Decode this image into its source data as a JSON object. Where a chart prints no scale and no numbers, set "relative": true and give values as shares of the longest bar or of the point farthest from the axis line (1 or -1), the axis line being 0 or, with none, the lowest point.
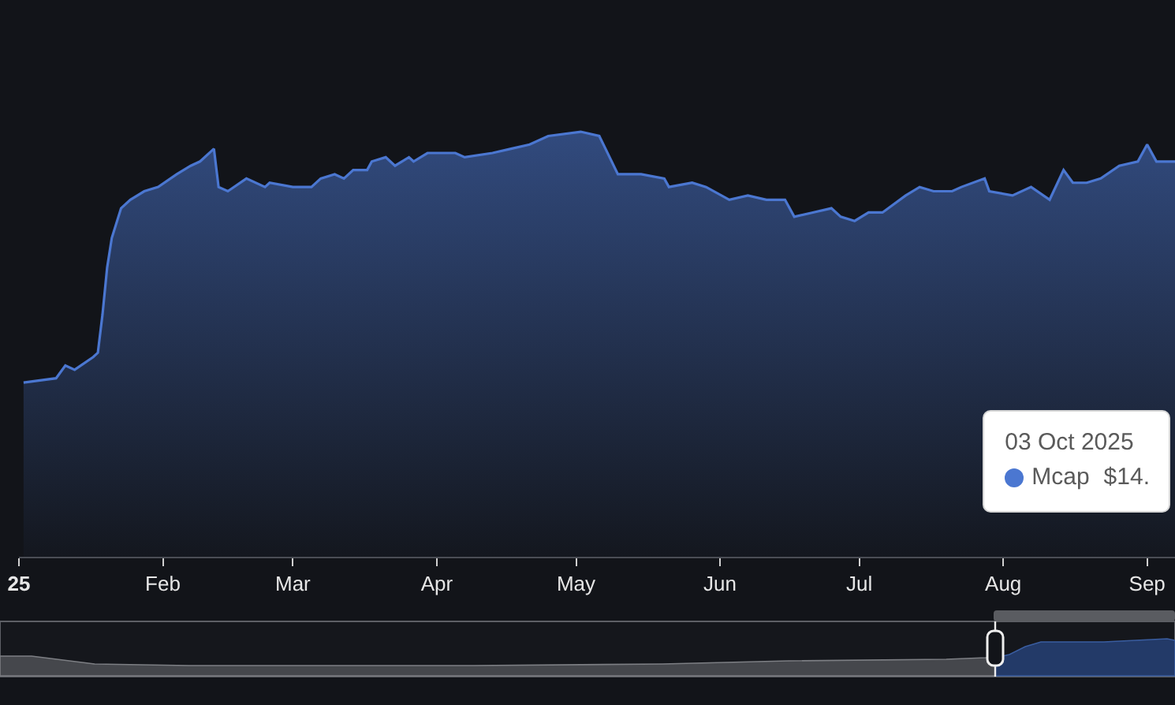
{
  "chart_data": {
    "type": "area",
    "relative": true,
    "x": [
      "2025-01-02",
      "2025-01-09",
      "2025-01-11",
      "2025-01-13",
      "2025-01-17",
      "2025-01-18",
      "2025-01-19",
      "2025-01-20",
      "2025-01-21",
      "2025-01-23",
      "2025-01-25",
      "2025-01-28",
      "2025-01-31",
      "2025-02-04",
      "2025-02-07",
      "2025-02-09",
      "2025-02-12",
      "2025-02-13",
      "2025-02-15",
      "2025-02-19",
      "2025-02-23",
      "2025-02-24",
      "2025-03-01",
      "2025-03-05",
      "2025-03-07",
      "2025-03-10",
      "2025-03-12",
      "2025-03-14",
      "2025-03-17",
      "2025-03-18",
      "2025-03-21",
      "2025-03-23",
      "2025-03-26",
      "2025-03-27",
      "2025-03-30",
      "2025-04-05",
      "2025-04-07",
      "2025-04-13",
      "2025-04-17",
      "2025-04-21",
      "2025-04-25",
      "2025-05-02",
      "2025-05-06",
      "2025-05-10",
      "2025-05-15",
      "2025-05-20",
      "2025-05-21",
      "2025-05-26",
      "2025-05-29",
      "2025-06-03",
      "2025-06-07",
      "2025-06-11",
      "2025-06-15",
      "2025-06-17",
      "2025-06-21",
      "2025-06-25",
      "2025-06-27",
      "2025-06-30",
      "2025-07-03",
      "2025-07-06",
      "2025-07-11",
      "2025-07-14",
      "2025-07-17",
      "2025-07-21",
      "2025-07-23",
      "2025-07-28",
      "2025-07-29",
      "2025-08-03",
      "2025-08-07",
      "2025-08-11",
      "2025-08-14",
      "2025-08-16",
      "2025-08-19",
      "2025-08-22",
      "2025-08-26",
      "2025-08-30",
      "2025-09-01",
      "2025-09-03",
      "2025-09-07"
    ],
    "series": [
      {
        "name": "Mcap",
        "color": "#4b77d1",
        "values": [
          0.41,
          0.42,
          0.45,
          0.44,
          0.47,
          0.48,
          0.57,
          0.68,
          0.75,
          0.82,
          0.84,
          0.86,
          0.87,
          0.9,
          0.92,
          0.93,
          0.96,
          0.87,
          0.86,
          0.89,
          0.87,
          0.88,
          0.87,
          0.87,
          0.89,
          0.9,
          0.89,
          0.91,
          0.91,
          0.93,
          0.94,
          0.92,
          0.94,
          0.93,
          0.95,
          0.95,
          0.94,
          0.95,
          0.96,
          0.97,
          0.99,
          1,
          0.99,
          0.9,
          0.9,
          0.89,
          0.87,
          0.88,
          0.87,
          0.84,
          0.85,
          0.84,
          0.84,
          0.8,
          0.81,
          0.82,
          0.8,
          0.79,
          0.81,
          0.81,
          0.85,
          0.87,
          0.86,
          0.86,
          0.87,
          0.89,
          0.86,
          0.85,
          0.87,
          0.84,
          0.91,
          0.88,
          0.88,
          0.89,
          0.92,
          0.93,
          0.97,
          0.93,
          0.93
        ]
      }
    ],
    "xlim": [
      "2025-01-01",
      "2025-09-07"
    ],
    "xticks": [
      {
        "value": "2025-01-01",
        "label": "25"
      },
      {
        "value": "2025-02-01",
        "label": "Feb"
      },
      {
        "value": "2025-03-01",
        "label": "Mar"
      },
      {
        "value": "2025-04-01",
        "label": "Apr"
      },
      {
        "value": "2025-05-01",
        "label": "May"
      },
      {
        "value": "2025-06-01",
        "label": "Jun"
      },
      {
        "value": "2025-07-01",
        "label": "Jul"
      },
      {
        "value": "2025-08-01",
        "label": "Aug"
      },
      {
        "value": "2025-09-01",
        "label": "Sep"
      }
    ],
    "annotations": [
      "03 Oct 2025",
      "$14."
    ],
    "legend": "bottom right"
  }
}
